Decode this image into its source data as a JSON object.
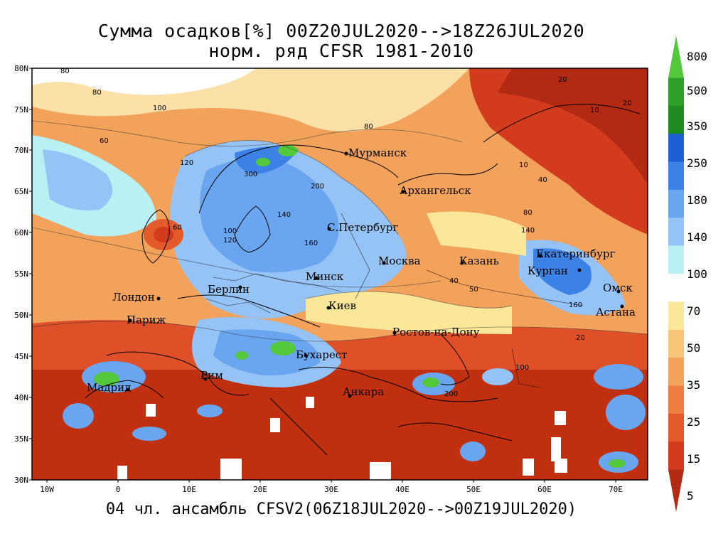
{
  "title_line1": "Сумма осадков[%] 00Z20JUL2020-->18Z26JUL2020",
  "title_line2": "норм. ряд CFSR 1981-2010",
  "footer": "04 чл. ансамбль CFSV2(06Z18JUL2020-->00Z19JUL2020)",
  "y_ticks": [
    "80N",
    "75N",
    "70N",
    "65N",
    "60N",
    "55N",
    "50N",
    "45N",
    "40N",
    "35N",
    "30N"
  ],
  "x_ticks": [
    "10W",
    "0",
    "10E",
    "20E",
    "30E",
    "40E",
    "50E",
    "60E",
    "70E"
  ],
  "colorbar": {
    "labels": [
      "800",
      "500",
      "350",
      "250",
      "180",
      "140",
      "100",
      "70",
      "50",
      "35",
      "25",
      "15",
      "5"
    ],
    "colors": [
      "#52c83a",
      "#2ea02a",
      "#1f8a1f",
      "#1e5fd6",
      "#3c82e6",
      "#6aa6f0",
      "#95c3f5",
      "#b9f0f3",
      "#ffffff",
      "#fbe79a",
      "#f7c577",
      "#f3a25c",
      "#ee7d43",
      "#e55a2c",
      "#d23c1d",
      "#b22a12"
    ]
  },
  "cities": [
    "Мурманск",
    "Архангельск",
    "С.Петербург",
    "Москва",
    "Казань",
    "Екатеринбург",
    "Курган",
    "Омск",
    "Астана",
    "Минск",
    "Берлин",
    "Лондон",
    "Париж",
    "Киев",
    "Ростов-на-Дону",
    "Бухарест",
    "Рим",
    "Мадрид",
    "Анкара"
  ],
  "contour_labels": [
    "80",
    "80",
    "100",
    "80",
    "20",
    "10",
    "20",
    "60",
    "120",
    "300",
    "200",
    "140",
    "160",
    "120",
    "100",
    "60",
    "140",
    "80",
    "40",
    "160",
    "200",
    "100",
    "50",
    "40",
    "20",
    "10"
  ]
}
